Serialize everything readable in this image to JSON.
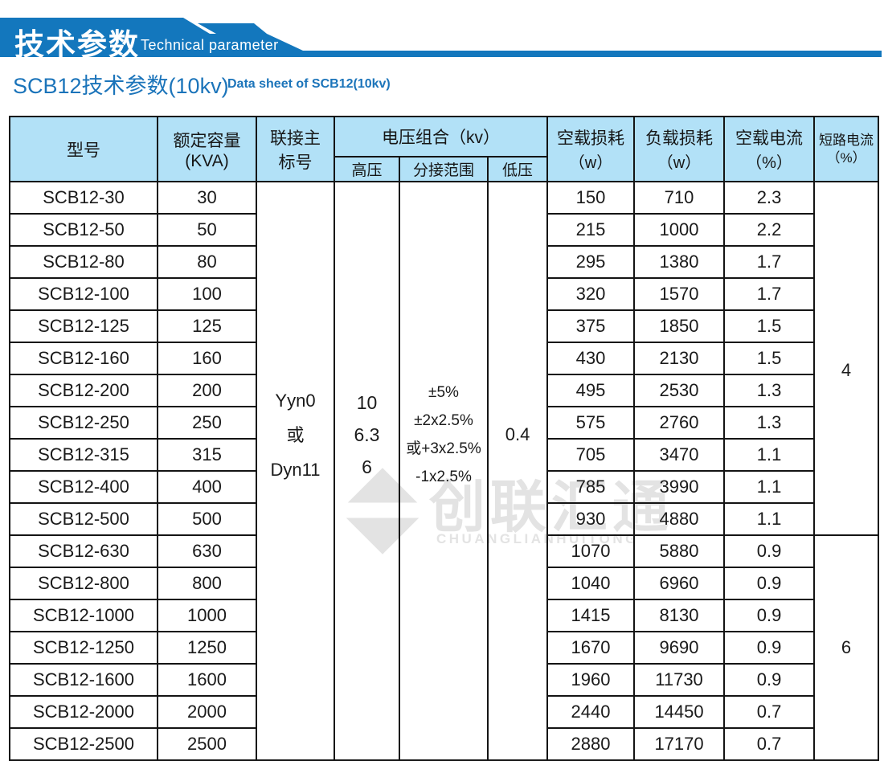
{
  "colors": {
    "banner_blue": "#1377bd",
    "title_blue": "#1b74ba",
    "header_bg": "#b2e1f7",
    "watermark_gray": "#e3e3e3"
  },
  "banner": {
    "title_zh": "技术参数",
    "title_en": "Technical parameter"
  },
  "page_heading": {
    "title": "SCB12技术参数(10kv)",
    "subtitle_en": "Data sheet of SCB12(10kv)"
  },
  "watermark": {
    "zh": "创联汇通",
    "en": "CHUANGLIANHUITONG"
  },
  "table": {
    "header": {
      "model": "型号",
      "capacity_line1": "额定容量",
      "capacity_line2": "(KVA)",
      "connection_line1": "联接主",
      "connection_line2": "标号",
      "voltage_group": "电压组合（kv）",
      "hv": "高压",
      "tap_range": "分接范围",
      "lv": "低压",
      "no_load_loss_line1": "空载损耗",
      "no_load_loss_line2": "（w）",
      "load_loss_line1": "负载损耗",
      "load_loss_line2": "（w）",
      "no_load_current_line1": "空载电流",
      "no_load_current_line2": "（%）",
      "short_circuit_line1": "短路电流",
      "short_circuit_line2": "（%）"
    },
    "merged": {
      "connection_lines": [
        "Yyn0",
        "或",
        "Dyn11"
      ],
      "hv_lines": [
        "10",
        "6.3",
        "6"
      ],
      "tap_lines": [
        "±5%",
        "±2x2.5%",
        "或+3x2.5%",
        "-1x2.5%"
      ],
      "lv": "0.4",
      "short_circuit_group1": "4",
      "short_circuit_group1_rows": 11,
      "short_circuit_group2": "6",
      "short_circuit_group2_rows": 7
    },
    "rows": [
      {
        "model": "SCB12-30",
        "capacity": "30",
        "no_load_loss": "150",
        "load_loss": "710",
        "no_load_current": "2.3"
      },
      {
        "model": "SCB12-50",
        "capacity": "50",
        "no_load_loss": "215",
        "load_loss": "1000",
        "no_load_current": "2.2"
      },
      {
        "model": "SCB12-80",
        "capacity": "80",
        "no_load_loss": "295",
        "load_loss": "1380",
        "no_load_current": "1.7"
      },
      {
        "model": "SCB12-100",
        "capacity": "100",
        "no_load_loss": "320",
        "load_loss": "1570",
        "no_load_current": "1.7"
      },
      {
        "model": "SCB12-125",
        "capacity": "125",
        "no_load_loss": "375",
        "load_loss": "1850",
        "no_load_current": "1.5"
      },
      {
        "model": "SCB12-160",
        "capacity": "160",
        "no_load_loss": "430",
        "load_loss": "2130",
        "no_load_current": "1.5"
      },
      {
        "model": "SCB12-200",
        "capacity": "200",
        "no_load_loss": "495",
        "load_loss": "2530",
        "no_load_current": "1.3"
      },
      {
        "model": "SCB12-250",
        "capacity": "250",
        "no_load_loss": "575",
        "load_loss": "2760",
        "no_load_current": "1.3"
      },
      {
        "model": "SCB12-315",
        "capacity": "315",
        "no_load_loss": "705",
        "load_loss": "3470",
        "no_load_current": "1.1"
      },
      {
        "model": "SCB12-400",
        "capacity": "400",
        "no_load_loss": "785",
        "load_loss": "3990",
        "no_load_current": "1.1"
      },
      {
        "model": "SCB12-500",
        "capacity": "500",
        "no_load_loss": "930",
        "load_loss": "4880",
        "no_load_current": "1.1"
      },
      {
        "model": "SCB12-630",
        "capacity": "630",
        "no_load_loss": "1070",
        "load_loss": "5880",
        "no_load_current": "0.9"
      },
      {
        "model": "SCB12-800",
        "capacity": "800",
        "no_load_loss": "1040",
        "load_loss": "6960",
        "no_load_current": "0.9"
      },
      {
        "model": "SCB12-1000",
        "capacity": "1000",
        "no_load_loss": "1415",
        "load_loss": "8130",
        "no_load_current": "0.9"
      },
      {
        "model": "SCB12-1250",
        "capacity": "1250",
        "no_load_loss": "1670",
        "load_loss": "9690",
        "no_load_current": "0.9"
      },
      {
        "model": "SCB12-1600",
        "capacity": "1600",
        "no_load_loss": "1960",
        "load_loss": "11730",
        "no_load_current": "0.9"
      },
      {
        "model": "SCB12-2000",
        "capacity": "2000",
        "no_load_loss": "2440",
        "load_loss": "14450",
        "no_load_current": "0.7"
      },
      {
        "model": "SCB12-2500",
        "capacity": "2500",
        "no_load_loss": "2880",
        "load_loss": "17170",
        "no_load_current": "0.7"
      }
    ]
  }
}
